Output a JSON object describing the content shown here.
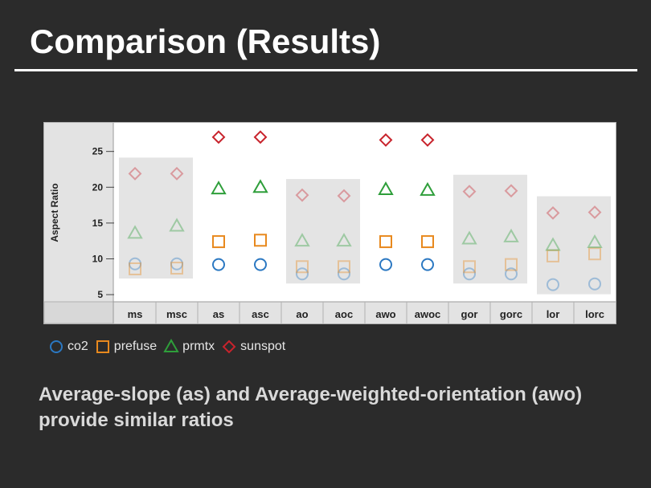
{
  "slide": {
    "title": "Comparison (Results)",
    "caption": "Average-slope (as) and Average-weighted-orientation (awo) provide similar ratios"
  },
  "colors": {
    "background": "#2b2b2b",
    "co2": "#2b78c2",
    "prefuse": "#e8891e",
    "prmtx": "#2e9e3a",
    "sunspot": "#c8232c",
    "group_box": "#e4e4e4"
  },
  "chart_data": {
    "type": "scatter",
    "title": "",
    "xlabel": "",
    "ylabel": "Aspect Ratio",
    "ylim": [
      4,
      29
    ],
    "yticks": [
      5,
      10,
      15,
      20,
      25
    ],
    "grid": false,
    "legend_position": "bottom-left",
    "categories": [
      "ms",
      "msc",
      "as",
      "asc",
      "ao",
      "aoc",
      "awo",
      "awoc",
      "gor",
      "gorc",
      "lor",
      "lorc"
    ],
    "highlighted_categories": [
      "as",
      "asc",
      "awo",
      "awoc"
    ],
    "series": [
      {
        "name": "co2",
        "marker": "circle",
        "values": [
          9.3,
          9.3,
          9.2,
          9.2,
          7.9,
          7.9,
          9.2,
          9.2,
          7.9,
          7.9,
          6.4,
          6.5
        ]
      },
      {
        "name": "prefuse",
        "marker": "square",
        "values": [
          8.6,
          8.7,
          12.4,
          12.6,
          8.9,
          8.9,
          12.4,
          12.4,
          8.9,
          9.2,
          10.4,
          10.7
        ]
      },
      {
        "name": "prmtx",
        "marker": "triangle",
        "values": [
          13.6,
          14.6,
          19.8,
          20.0,
          12.5,
          12.5,
          19.7,
          19.6,
          12.8,
          13.1,
          11.9,
          12.3
        ]
      },
      {
        "name": "sunspot",
        "marker": "diamond",
        "values": [
          21.9,
          21.9,
          27.0,
          27.0,
          18.9,
          18.8,
          26.6,
          26.6,
          19.4,
          19.5,
          16.4,
          16.5
        ]
      }
    ]
  }
}
